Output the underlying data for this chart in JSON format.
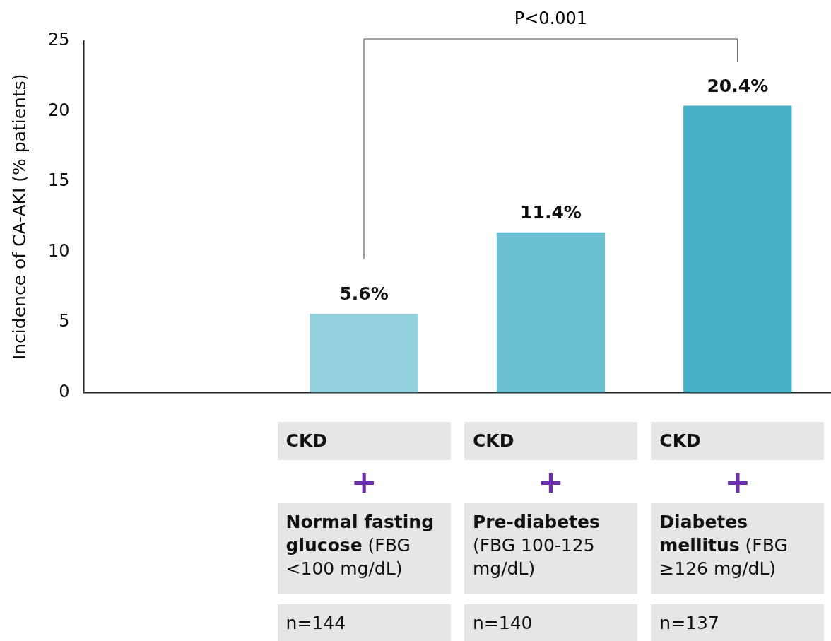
{
  "chart_data": {
    "type": "bar",
    "ylabel": "Incidence of CA-AKI (% patients)",
    "categories": [
      null,
      "Normal fasting glucose (FBG <100 mg/dL)",
      "Pre-diabetes (FBG 100-125 mg/dL)",
      "Diabetes mellitus (FBG ≥126 mg/dL)"
    ],
    "values": [
      null,
      5.6,
      11.4,
      20.4
    ],
    "colors": [
      "#92d1dd",
      "#92d1dd",
      "#6bc0d2",
      "#45b0c7"
    ],
    "ylim": [
      0,
      25
    ],
    "yticks": [
      0,
      5,
      10,
      15,
      20,
      25
    ],
    "grid": false,
    "legend": false,
    "data_labels": true,
    "value_labels": [
      null,
      "5.6%",
      "11.4%",
      "20.4%"
    ],
    "annotations": [
      "P<0.001",
      "CKD",
      "+",
      "n=144",
      "CKD",
      "+",
      "n=140",
      "CKD",
      "+",
      "n=137"
    ]
  }
}
